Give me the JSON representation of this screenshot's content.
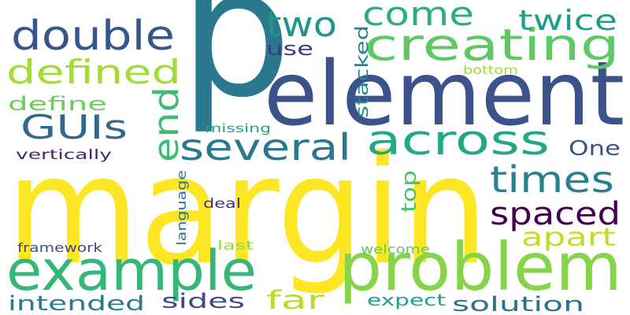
{
  "wordcloud": {
    "words": [
      {
        "text": "margin",
        "color": "#fde725"
      },
      {
        "text": "p",
        "color": "#2a788e"
      },
      {
        "text": "element",
        "color": "#3b528b"
      },
      {
        "text": "problem",
        "color": "#86d549"
      },
      {
        "text": "example",
        "color": "#35b779"
      },
      {
        "text": "creating",
        "color": "#5ec962"
      },
      {
        "text": "double",
        "color": "#39568c"
      },
      {
        "text": "across",
        "color": "#22a884"
      },
      {
        "text": "several",
        "color": "#2a788e"
      },
      {
        "text": "times",
        "color": "#26828e"
      },
      {
        "text": "spaced",
        "color": "#440154"
      },
      {
        "text": "defined",
        "color": "#a5db36"
      },
      {
        "text": "come",
        "color": "#2ab07f"
      },
      {
        "text": "two",
        "color": "#1f968b"
      },
      {
        "text": "twice",
        "color": "#1f9e89"
      },
      {
        "text": "GUIs",
        "color": "#31688e"
      },
      {
        "text": "apart",
        "color": "#bddf26"
      },
      {
        "text": "far",
        "color": "#b5de2b"
      },
      {
        "text": "end",
        "color": "#3dbc74"
      },
      {
        "text": "One",
        "color": "#3b528b"
      },
      {
        "text": "solution",
        "color": "#2c728e"
      },
      {
        "text": "intended",
        "color": "#287c8e"
      },
      {
        "text": "sides",
        "color": "#3e4989"
      },
      {
        "text": "define",
        "color": "#6ccd5a"
      },
      {
        "text": "use",
        "color": "#453781"
      },
      {
        "text": "stacked",
        "color": "#25858e"
      },
      {
        "text": "top",
        "color": "#4ac16d"
      },
      {
        "text": "expect",
        "color": "#1fa187"
      },
      {
        "text": "bottom",
        "color": "#a2da37"
      },
      {
        "text": "vertically",
        "color": "#482475"
      },
      {
        "text": "missing",
        "color": "#20a486"
      },
      {
        "text": "language",
        "color": "#2d718e"
      },
      {
        "text": "deal",
        "color": "#472d7b"
      },
      {
        "text": "framework",
        "color": "#3e4a89"
      },
      {
        "text": "last",
        "color": "#90d743"
      },
      {
        "text": "welcome",
        "color": "#5ec962"
      }
    ]
  }
}
